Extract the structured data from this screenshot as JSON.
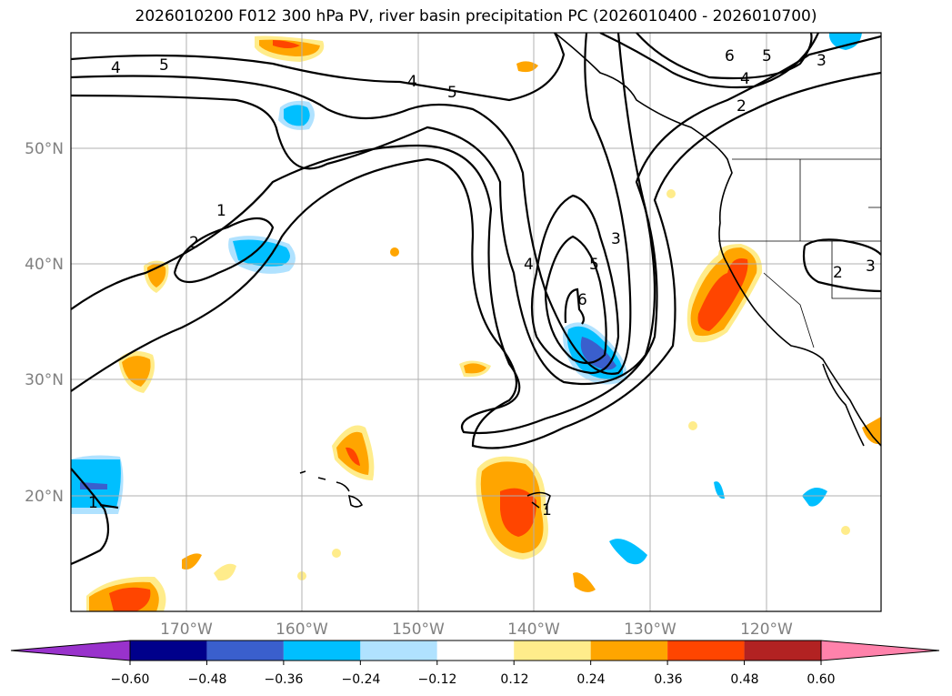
{
  "title": "2026010200 F012 300 hPa PV, river basin precipitation PC (2026010400 - 2026010700)",
  "lon_ticks": [
    "170°W",
    "160°W",
    "150°W",
    "140°W",
    "130°W",
    "120°W"
  ],
  "lat_ticks": [
    "50°N",
    "40°N",
    "30°N",
    "20°N"
  ],
  "map_extent": {
    "lon": [
      -180,
      -110
    ],
    "lat": [
      10,
      60
    ]
  },
  "colorbar": {
    "ticks": [
      "−0.60",
      "−0.48",
      "−0.36",
      "−0.24",
      "−0.12",
      "0.12",
      "0.24",
      "0.36",
      "0.48",
      "0.60"
    ],
    "under_color": "#9932cc",
    "colors": [
      "#00008b",
      "#3a5fcd",
      "#00bfff",
      "#b0e2ff",
      "#ffffff",
      "#ffec8b",
      "#ffa500",
      "#ff4500",
      "#b22222"
    ],
    "over_color": "#ff82ab"
  },
  "contour_labels": [
    "4",
    "5",
    "4",
    "5",
    "6",
    "5",
    "4",
    "3",
    "2",
    "1",
    "2",
    "4",
    "5",
    "3",
    "6",
    "1",
    "1",
    "2",
    "3"
  ]
}
